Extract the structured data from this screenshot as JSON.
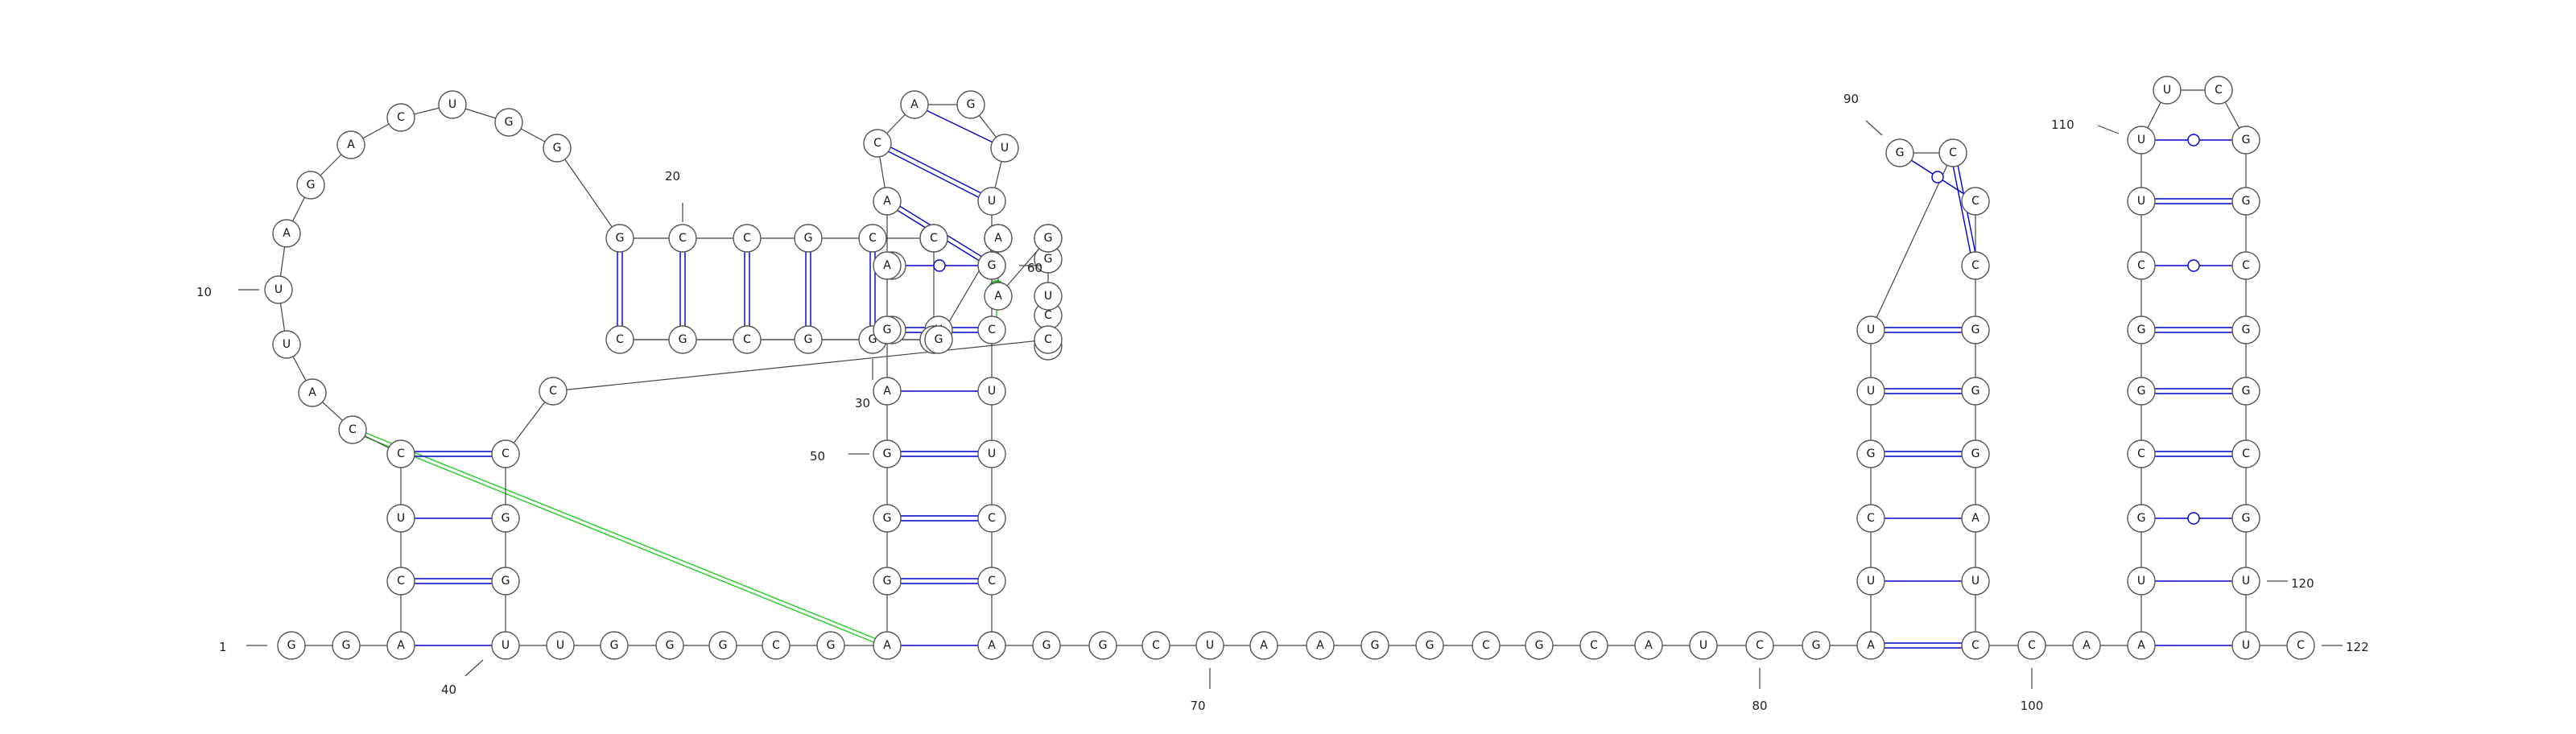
{
  "colors": {
    "backbone": "#444444",
    "base_pair": "#0000cc",
    "pseudoknot": "#22cc22",
    "circle_stroke": "#555555"
  },
  "number_labels": [
    "1",
    "10",
    "20",
    "30",
    "40",
    "50",
    "60",
    "70",
    "80",
    "90",
    "100",
    "110",
    "120",
    "122"
  ],
  "sequence": "GGACUCCAUUAGACUGGGCCGCCGGGCGCGAAGUCCCGGGGAGAGCUACGGUAUGGCCUAAGGCCGCAUCGGGGCAGCCAAAAAAUCGGAAUGCGGGCAGCCCAGAUGCGGGCUCCUUGCCAUGGGAGGCCCUAUUGGCCCGGGGAAGCAUGAUUGAAGUACGCC",
  "nucleotides": [
    {
      "id": 1,
      "base": "G"
    },
    {
      "id": 2,
      "base": "G"
    },
    {
      "id": 3,
      "base": "A"
    },
    {
      "id": 4,
      "base": "C"
    },
    {
      "id": 5,
      "base": "U"
    },
    {
      "id": 6,
      "base": "C"
    },
    {
      "id": 7,
      "base": "C"
    },
    {
      "id": 8,
      "base": "A"
    },
    {
      "id": 9,
      "base": "U"
    },
    {
      "id": 10,
      "base": "U"
    },
    {
      "id": 11,
      "base": "A"
    },
    {
      "id": 12,
      "base": "G"
    },
    {
      "id": 13,
      "base": "A"
    },
    {
      "id": 14,
      "base": "C"
    },
    {
      "id": 15,
      "base": "U"
    },
    {
      "id": 16,
      "base": "G"
    },
    {
      "id": 17,
      "base": "G"
    },
    {
      "id": 18,
      "base": "G"
    },
    {
      "id": 19,
      "base": "C"
    },
    {
      "id": 20,
      "base": "C"
    },
    {
      "id": 21,
      "base": "G"
    },
    {
      "id": 22,
      "base": "C"
    },
    {
      "id": 23,
      "base": "C"
    },
    {
      "id": 24,
      "base": "G"
    },
    {
      "id": 25,
      "base": "G"
    },
    {
      "id": 26,
      "base": "G"
    },
    {
      "id": 27,
      "base": "C"
    },
    {
      "id": 28,
      "base": "G"
    },
    {
      "id": 29,
      "base": "C"
    },
    {
      "id": 30,
      "base": "G"
    },
    {
      "id": 31,
      "base": "A"
    },
    {
      "id": 32,
      "base": "A"
    },
    {
      "id": 33,
      "base": "G"
    },
    {
      "id": 34,
      "base": "U"
    },
    {
      "id": 35,
      "base": "C"
    },
    {
      "id": 36,
      "base": "C"
    },
    {
      "id": 37,
      "base": "C"
    },
    {
      "id": 38,
      "base": "G"
    },
    {
      "id": 39,
      "base": "G"
    },
    {
      "id": 40,
      "base": "U"
    },
    {
      "id": 41,
      "base": "U"
    },
    {
      "id": 42,
      "base": "G"
    },
    {
      "id": 43,
      "base": "G"
    },
    {
      "id": 44,
      "base": "G"
    },
    {
      "id": 45,
      "base": "C"
    },
    {
      "id": 46,
      "base": "G"
    },
    {
      "id": 47,
      "base": "A"
    },
    {
      "id": 48,
      "base": "G"
    },
    {
      "id": 49,
      "base": "G"
    },
    {
      "id": 50,
      "base": "G"
    },
    {
      "id": 51,
      "base": "A"
    },
    {
      "id": 52,
      "base": "G"
    },
    {
      "id": 53,
      "base": "A"
    },
    {
      "id": 54,
      "base": "A"
    },
    {
      "id": 55,
      "base": "C"
    },
    {
      "id": 56,
      "base": "A"
    },
    {
      "id": 57,
      "base": "G"
    },
    {
      "id": 58,
      "base": "U"
    },
    {
      "id": 59,
      "base": "U"
    },
    {
      "id": 60,
      "base": "C"
    },
    {
      "id": 61,
      "base": "G"
    },
    {
      "id": 62,
      "base": "C"
    },
    {
      "id": 63,
      "base": "U"
    },
    {
      "id": 64,
      "base": "U"
    },
    {
      "id": 65,
      "base": "C"
    },
    {
      "id": 66,
      "base": "C"
    },
    {
      "id": 67,
      "base": "U"
    },
    {
      "id": 68,
      "base": "A"
    },
    {
      "id": 69,
      "base": "G"
    },
    {
      "id": 70,
      "base": "G"
    },
    {
      "id": 71,
      "base": "C"
    },
    {
      "id": 72,
      "base": "U"
    },
    {
      "id": 73,
      "base": "A"
    },
    {
      "id": 74,
      "base": "A"
    },
    {
      "id": 75,
      "base": "G"
    },
    {
      "id": 76,
      "base": "G"
    },
    {
      "id": 77,
      "base": "C"
    },
    {
      "id": 78,
      "base": "G"
    },
    {
      "id": 79,
      "base": "C"
    },
    {
      "id": 80,
      "base": "A"
    },
    {
      "id": 81,
      "base": "U"
    },
    {
      "id": 82,
      "base": "C"
    },
    {
      "id": 83,
      "base": "G"
    },
    {
      "id": 84,
      "base": "A"
    },
    {
      "id": 85,
      "base": "U"
    },
    {
      "id": 86,
      "base": "C"
    },
    {
      "id": 87,
      "base": "G"
    },
    {
      "id": 88,
      "base": "U"
    },
    {
      "id": 89,
      "base": "U"
    },
    {
      "id": 90,
      "base": "C"
    },
    {
      "id": 91,
      "base": "G"
    },
    {
      "id": 92,
      "base": "C"
    },
    {
      "id": 93,
      "base": "C"
    },
    {
      "id": 94,
      "base": "G"
    },
    {
      "id": 95,
      "base": "G"
    },
    {
      "id": 96,
      "base": "G"
    },
    {
      "id": 97,
      "base": "A"
    },
    {
      "id": 98,
      "base": "U"
    },
    {
      "id": 99,
      "base": "C"
    },
    {
      "id": 100,
      "base": "C"
    },
    {
      "id": 101,
      "base": "A"
    },
    {
      "id": 102,
      "base": "A"
    },
    {
      "id": 103,
      "base": "U"
    },
    {
      "id": 104,
      "base": "G"
    },
    {
      "id": 105,
      "base": "C"
    },
    {
      "id": 106,
      "base": "G"
    },
    {
      "id": 107,
      "base": "G"
    },
    {
      "id": 108,
      "base": "C"
    },
    {
      "id": 109,
      "base": "U"
    },
    {
      "id": 110,
      "base": "U"
    },
    {
      "id": 111,
      "base": "U"
    },
    {
      "id": 112,
      "base": "C"
    },
    {
      "id": 113,
      "base": "G"
    },
    {
      "id": 114,
      "base": "G"
    },
    {
      "id": 115,
      "base": "C"
    },
    {
      "id": 116,
      "base": "G"
    },
    {
      "id": 117,
      "base": "G"
    },
    {
      "id": 118,
      "base": "C"
    },
    {
      "id": 119,
      "base": "G"
    },
    {
      "id": 120,
      "base": "U"
    },
    {
      "id": 121,
      "base": "U"
    },
    {
      "id": 122,
      "base": "C"
    }
  ],
  "extra_nucleotides": [
    {
      "id": "o1",
      "base": "G"
    },
    {
      "id": "o2",
      "base": "U"
    },
    {
      "id": "o3",
      "base": "G"
    },
    {
      "id": "o4",
      "base": "C"
    },
    {
      "id": "o5",
      "base": "G"
    },
    {
      "id": "o6",
      "base": "G"
    },
    {
      "id": "o7",
      "base": "U"
    },
    {
      "id": "o8",
      "base": "C"
    },
    {
      "id": "o9",
      "base": "G"
    }
  ],
  "base_pairs": [
    {
      "i": 3,
      "j": 40,
      "type": "single"
    },
    {
      "i": 4,
      "j": 39,
      "type": "double"
    },
    {
      "i": 5,
      "j": 38,
      "type": "single"
    },
    {
      "i": 6,
      "j": 37,
      "type": "double"
    },
    {
      "i": 18,
      "j": 29,
      "type": "double"
    },
    {
      "i": 19,
      "j": 28,
      "type": "double"
    },
    {
      "i": 20,
      "j": 27,
      "type": "double"
    },
    {
      "i": 21,
      "j": 26,
      "type": "double"
    },
    {
      "i": 22,
      "j": 25,
      "type": "double"
    },
    {
      "i": 47,
      "j": 67,
      "type": "single"
    },
    {
      "i": 48,
      "j": 66,
      "type": "double"
    },
    {
      "i": 49,
      "j": 65,
      "type": "double"
    },
    {
      "i": 50,
      "j": 64,
      "type": "double"
    },
    {
      "i": 51,
      "j": 63,
      "type": "single"
    },
    {
      "i": 52,
      "j": 62,
      "type": "double"
    },
    {
      "i": 53,
      "j": 61,
      "type": "wobble"
    },
    {
      "i": 54,
      "j": 60,
      "type": "double"
    },
    {
      "i": 55,
      "j": 59,
      "type": "double"
    },
    {
      "i": 56,
      "j": 58,
      "type": "single"
    },
    {
      "i": 84,
      "j": 99,
      "type": "double"
    },
    {
      "i": 85,
      "j": 98,
      "type": "single"
    },
    {
      "i": 86,
      "j": 97,
      "type": "single"
    },
    {
      "i": 87,
      "j": 96,
      "type": "double"
    },
    {
      "i": 88,
      "j": 95,
      "type": "double"
    },
    {
      "i": 89,
      "j": 94,
      "type": "double"
    },
    {
      "i": 90,
      "j": 93,
      "type": "double"
    },
    {
      "i": 91,
      "j": 92,
      "type": "wobble"
    },
    {
      "i": 102,
      "j": 121,
      "type": "single"
    },
    {
      "i": 103,
      "j": 120,
      "type": "single"
    },
    {
      "i": 104,
      "j": 119,
      "type": "wobble"
    },
    {
      "i": 105,
      "j": 118,
      "type": "double"
    },
    {
      "i": 106,
      "j": 117,
      "type": "double"
    },
    {
      "i": 107,
      "j": 116,
      "type": "double"
    },
    {
      "i": 108,
      "j": 115,
      "type": "wobble"
    },
    {
      "i": 109,
      "j": 114,
      "type": "double"
    },
    {
      "i": 110,
      "j": 113,
      "type": "wobble"
    }
  ],
  "pseudoknot": {
    "from": 7,
    "to": 47
  }
}
